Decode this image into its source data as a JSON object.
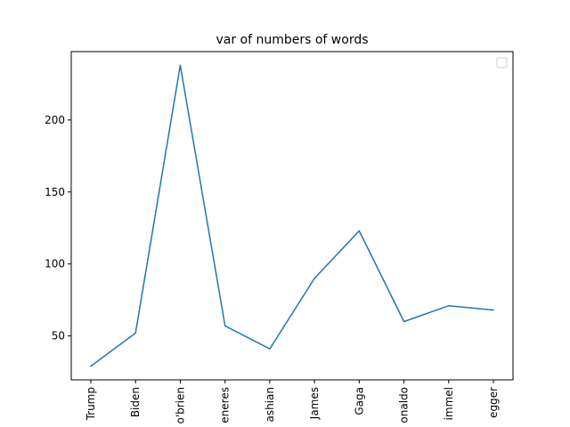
{
  "chart_data": {
    "type": "line",
    "title": "var of numbers of words",
    "xlabel": "",
    "ylabel": "",
    "categories": [
      "Trump",
      "Biden",
      "o'brien",
      "degeneres",
      "kardashian",
      "James",
      "Gaga",
      "mcdonaldo",
      "kimmel",
      "schwarzenegger"
    ],
    "visible_tick_labels": [
      "Trump",
      "Biden",
      "o'brien",
      "eneres",
      "ashian",
      "James",
      "Gaga",
      "onaldo",
      "immel",
      "egger"
    ],
    "series": [
      {
        "values": [
          29,
          52,
          238,
          57,
          41,
          90,
          123,
          60,
          71,
          68
        ]
      }
    ],
    "ylim": [
      19.5,
      247.5
    ],
    "y_ticks": [
      50,
      100,
      150,
      200
    ],
    "grid": false,
    "legend": "top-right",
    "colors": {
      "line": "#1f77b4",
      "axes": "#000000",
      "legend_border": "#cccccc"
    }
  }
}
